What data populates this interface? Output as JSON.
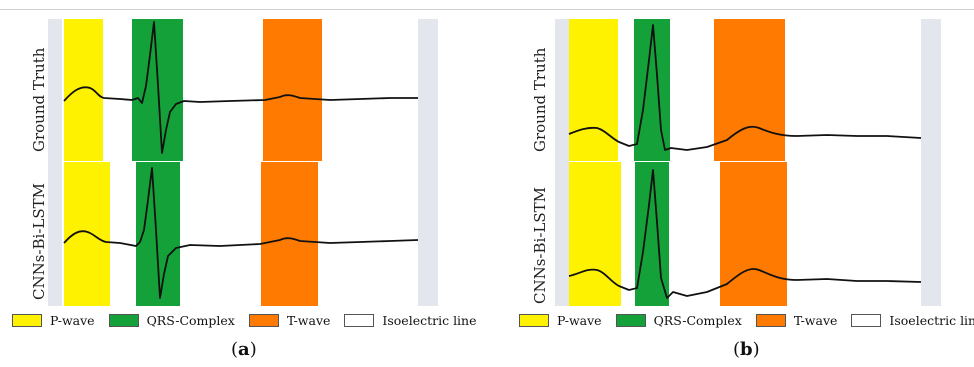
{
  "colors": {
    "p_wave": "#fff200",
    "qrs": "#14a13a",
    "t_wave": "#ff7a00",
    "isoelectric": "#ffffff",
    "edge": "#e4e6ee",
    "signal": "#111111"
  },
  "row_labels": [
    "Ground Truth",
    "CNNs-Bi-LSTM"
  ],
  "legend": {
    "p_wave": "P-wave",
    "qrs": "QRS-Complex",
    "t_wave": "T-wave",
    "isoelectric": "Isoelectric line"
  },
  "panels": [
    {
      "id": "a",
      "caption_letter": "a"
    },
    {
      "id": "b",
      "caption_letter": "b"
    }
  ]
}
